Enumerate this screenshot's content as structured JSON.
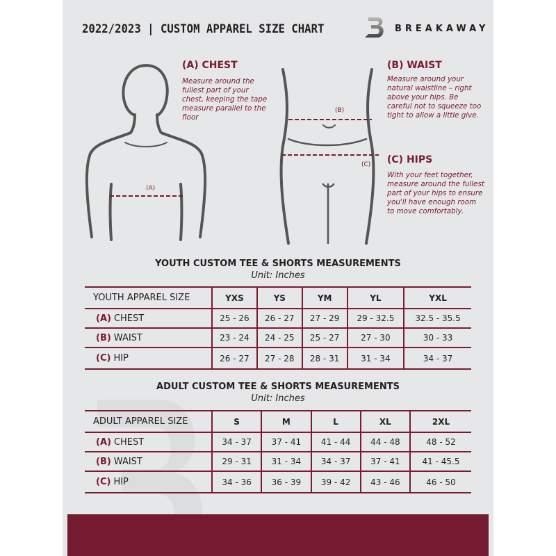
{
  "header": {
    "title": "2022/2023  |  CUSTOM APPAREL SIZE CHART",
    "brand": "BREAKAWAY"
  },
  "guides": {
    "chest": {
      "heading": "(A) CHEST",
      "text": "Measure around the fullest part of your chest, keeping the tape measure parallel to the floor",
      "marker": "(A)"
    },
    "waist": {
      "heading": "(B) WAIST",
      "text": "Measure around your natural waistline – right above your hips. Be careful not to squeeze too tight to allow a little give.",
      "marker": "(B)"
    },
    "hips": {
      "heading": "(C) HIPS",
      "text": "With your feet together, measure around the fullest part of your hips to ensure you'll have enough room to move comfortably.",
      "marker": "(C)"
    }
  },
  "youth": {
    "title": "YOUTH CUSTOM TEE & SHORTS MEASUREMENTS",
    "unit": "Unit: Inches",
    "size_label": "YOUTH APPAREL SIZE",
    "sizes": [
      "YXS",
      "YS",
      "YM",
      "YL",
      "YXL"
    ],
    "rows": [
      {
        "letter": "(A)",
        "name": "CHEST",
        "values": [
          "25 - 26",
          "26 - 27",
          "27 - 29",
          "29 - 32.5",
          "32.5 - 35.5"
        ]
      },
      {
        "letter": "(B)",
        "name": "WAIST",
        "values": [
          "23 - 24",
          "24 - 25",
          "25 - 27",
          "27 - 30",
          "30 - 33"
        ]
      },
      {
        "letter": "(C)",
        "name": "HIP",
        "values": [
          "26 - 27",
          "27 - 28",
          "28 - 31",
          "31 - 34",
          "34 - 37"
        ]
      }
    ]
  },
  "adult": {
    "title": "ADULT CUSTOM TEE & SHORTS MEASUREMENTS",
    "unit": "Unit: Inches",
    "size_label": "ADULT APPAREL SIZE",
    "sizes": [
      "S",
      "M",
      "L",
      "XL",
      "2XL"
    ],
    "rows": [
      {
        "letter": "(A)",
        "name": "CHEST",
        "values": [
          "34 - 37",
          "37 - 41",
          "41 - 44",
          "44 - 48",
          "48 - 52"
        ]
      },
      {
        "letter": "(B)",
        "name": "WAIST",
        "values": [
          "29 - 31",
          "31 - 34",
          "34 - 37",
          "37 - 41",
          "41 - 45.5"
        ]
      },
      {
        "letter": "(C)",
        "name": "HIP",
        "values": [
          "34 - 36",
          "36 - 39",
          "39 - 42",
          "43 - 46",
          "46 - 50"
        ]
      }
    ]
  },
  "colors": {
    "accent": "#7a1b30",
    "background": "#e6e7e8"
  }
}
